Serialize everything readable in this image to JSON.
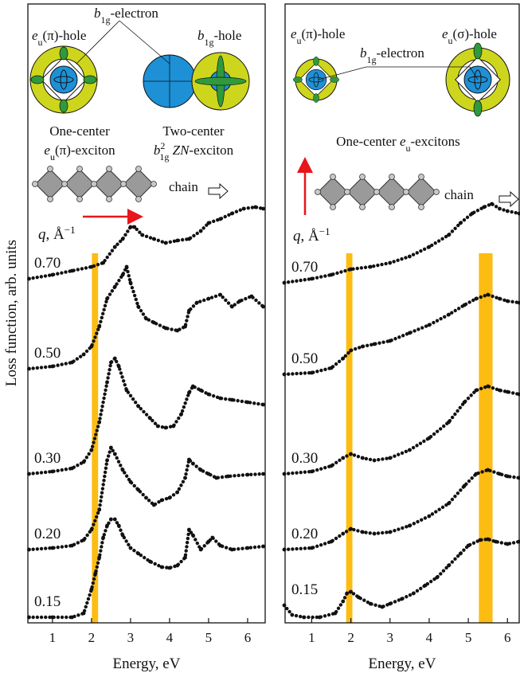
{
  "chart_data": [
    {
      "type": "scatter",
      "xlabel": "Energy, eV",
      "ylabel": "Loss function, arb. units",
      "xlim": [
        0.37,
        6.45
      ],
      "ylim": [
        0,
        7.77
      ],
      "xticks": [
        1,
        2,
        3,
        4,
        5,
        6
      ],
      "band_color": "#fdbc12",
      "bands": [
        [
          2.01,
          2.17
        ]
      ],
      "q_label": {
        "symbol": "q",
        "unit": ", Å",
        "sup": "−1"
      },
      "annotations": [
        {
          "parts": [
            {
              "text": "e",
              "style": "italic"
            },
            {
              "text": "u",
              "style": "sub"
            },
            {
              "text": "(π)-hole"
            }
          ]
        },
        {
          "parts": [
            {
              "text": "b",
              "style": "italic"
            },
            {
              "text": "1g",
              "style": "sub"
            },
            {
              "text": "-electron"
            }
          ]
        },
        {
          "parts": [
            {
              "text": "b",
              "style": "italic"
            },
            {
              "text": "1g",
              "style": "sub"
            },
            {
              "text": "-hole"
            }
          ]
        },
        {
          "parts": [
            {
              "text": "One-center"
            }
          ]
        },
        {
          "parts": [
            {
              "text": "e",
              "style": "italic"
            },
            {
              "text": "u",
              "style": "sub"
            },
            {
              "text": "(π)-exciton"
            }
          ]
        },
        {
          "parts": [
            {
              "text": "Two-center"
            }
          ]
        },
        {
          "parts": [
            {
              "text": "b",
              "style": "italic"
            },
            {
              "text": "2",
              "style": "sup"
            },
            {
              "text": "1g",
              "style": "sub-under"
            },
            {
              "text": " ZN",
              "style": "italic"
            },
            {
              "text": "-exciton"
            }
          ]
        },
        {
          "parts": [
            {
              "text": "chain"
            }
          ]
        }
      ],
      "series": [
        {
          "name": "0.70",
          "color": "#111111",
          "x": [
            0.4,
            1.0,
            1.5,
            2.0,
            2.3,
            2.6,
            2.8,
            3.0,
            3.1,
            3.3,
            3.6,
            3.9,
            4.2,
            4.5,
            4.8,
            5.0,
            5.3,
            5.6,
            5.9,
            6.2,
            6.4
          ],
          "values": [
            4.32,
            4.37,
            4.42,
            4.47,
            4.52,
            4.72,
            4.82,
            4.97,
            4.97,
            4.87,
            4.82,
            4.77,
            4.8,
            4.82,
            4.92,
            5.02,
            5.07,
            5.14,
            5.2,
            5.22,
            5.2
          ]
        },
        {
          "name": "0.50",
          "color": "#111111",
          "x": [
            0.4,
            1.0,
            1.5,
            1.8,
            2.0,
            2.2,
            2.4,
            2.6,
            2.8,
            2.9,
            3.0,
            3.2,
            3.4,
            3.6,
            3.9,
            4.2,
            4.4,
            4.5,
            4.7,
            5.0,
            5.3,
            5.6,
            5.8,
            6.1,
            6.4
          ],
          "values": [
            3.19,
            3.22,
            3.27,
            3.37,
            3.47,
            3.72,
            4.07,
            4.22,
            4.37,
            4.47,
            4.27,
            3.97,
            3.82,
            3.77,
            3.7,
            3.67,
            3.72,
            3.92,
            4.02,
            4.07,
            4.12,
            3.97,
            4.04,
            4.1,
            3.97
          ]
        },
        {
          "name": "0.30",
          "color": "#111111",
          "x": [
            0.4,
            1.0,
            1.5,
            1.8,
            2.0,
            2.2,
            2.4,
            2.5,
            2.6,
            2.7,
            2.9,
            3.2,
            3.5,
            3.7,
            3.9,
            4.1,
            4.3,
            4.5,
            4.6,
            4.8,
            5.0,
            5.3,
            5.6,
            6.0,
            6.4
          ],
          "values": [
            1.87,
            1.9,
            1.94,
            2.02,
            2.17,
            2.52,
            3.02,
            3.27,
            3.32,
            3.22,
            2.92,
            2.72,
            2.57,
            2.47,
            2.45,
            2.47,
            2.62,
            2.89,
            2.97,
            2.92,
            2.87,
            2.82,
            2.8,
            2.77,
            2.74
          ]
        },
        {
          "name": "0.20",
          "color": "#111111",
          "x": [
            0.4,
            1.0,
            1.5,
            1.8,
            2.0,
            2.2,
            2.4,
            2.5,
            2.6,
            2.8,
            3.0,
            3.2,
            3.4,
            3.6,
            3.8,
            4.0,
            4.2,
            4.4,
            4.5,
            4.6,
            4.8,
            5.0,
            5.2,
            5.5,
            6.0,
            6.4
          ],
          "values": [
            0.92,
            0.94,
            0.97,
            1.04,
            1.17,
            1.42,
            2.04,
            2.2,
            2.12,
            1.92,
            1.77,
            1.67,
            1.57,
            1.48,
            1.54,
            1.57,
            1.64,
            1.82,
            2.05,
            2.0,
            1.92,
            1.87,
            1.82,
            1.84,
            1.86,
            1.87
          ]
        },
        {
          "name": "0.15",
          "color": "#111111",
          "x": [
            0.4,
            1.0,
            1.5,
            1.8,
            2.0,
            2.1,
            2.2,
            2.3,
            2.4,
            2.5,
            2.6,
            2.7,
            2.8,
            3.0,
            3.2,
            3.5,
            3.8,
            4.0,
            4.2,
            4.4,
            4.5,
            4.6,
            4.8,
            5.0,
            5.1,
            5.3,
            5.6,
            6.0,
            6.4
          ],
          "values": [
            0.07,
            0.07,
            0.07,
            0.12,
            0.42,
            0.62,
            0.82,
            1.07,
            1.22,
            1.3,
            1.3,
            1.22,
            1.1,
            0.94,
            0.87,
            0.77,
            0.7,
            0.69,
            0.72,
            0.82,
            1.17,
            1.1,
            0.92,
            1.02,
            1.07,
            0.97,
            0.92,
            0.94,
            0.96
          ]
        }
      ]
    },
    {
      "type": "scatter",
      "xlabel": "Energy, eV",
      "xlim": [
        0.32,
        6.3
      ],
      "ylim": [
        0,
        7.77
      ],
      "xticks": [
        1,
        2,
        3,
        4,
        5,
        6
      ],
      "band_color": "#fdbc12",
      "bands": [
        [
          1.88,
          2.04
        ],
        [
          5.27,
          5.62
        ]
      ],
      "q_label": {
        "symbol": "q",
        "unit": ", Å",
        "sup": "−1"
      },
      "annotations": [
        {
          "parts": [
            {
              "text": "e",
              "style": "italic"
            },
            {
              "text": "u",
              "style": "sub"
            },
            {
              "text": "(π)-hole"
            }
          ]
        },
        {
          "parts": [
            {
              "text": "b",
              "style": "italic"
            },
            {
              "text": "1g",
              "style": "sub"
            },
            {
              "text": "-electron"
            }
          ]
        },
        {
          "parts": [
            {
              "text": "e",
              "style": "italic"
            },
            {
              "text": "u",
              "style": "sub"
            },
            {
              "text": "(σ)-hole"
            }
          ]
        },
        {
          "parts": [
            {
              "text": "One-center "
            },
            {
              "text": "e",
              "style": "italic"
            },
            {
              "text": "u",
              "style": "sub"
            },
            {
              "text": "-excitons"
            }
          ]
        },
        {
          "parts": [
            {
              "text": "chain"
            }
          ]
        }
      ],
      "series": [
        {
          "name": "0.70",
          "color": "#111111",
          "x": [
            0.3,
            1.0,
            1.5,
            2.0,
            2.5,
            3.0,
            3.5,
            4.0,
            4.5,
            4.8,
            5.1,
            5.4,
            5.6,
            5.8,
            6.0,
            6.3
          ],
          "values": [
            4.27,
            4.32,
            4.37,
            4.44,
            4.47,
            4.52,
            4.6,
            4.72,
            4.87,
            5.02,
            5.14,
            5.22,
            5.26,
            5.2,
            5.17,
            5.14
          ]
        },
        {
          "name": "0.50",
          "color": "#111111",
          "x": [
            0.3,
            1.0,
            1.5,
            1.8,
            2.0,
            2.3,
            2.6,
            3.0,
            3.5,
            4.0,
            4.5,
            4.9,
            5.2,
            5.5,
            5.8,
            6.0,
            6.3
          ],
          "values": [
            3.12,
            3.14,
            3.2,
            3.32,
            3.42,
            3.47,
            3.5,
            3.54,
            3.64,
            3.74,
            3.87,
            3.99,
            4.07,
            4.12,
            4.07,
            4.04,
            4.02
          ]
        },
        {
          "name": "0.30",
          "color": "#111111",
          "x": [
            0.3,
            1.0,
            1.5,
            1.8,
            2.0,
            2.3,
            2.6,
            3.0,
            3.5,
            4.0,
            4.5,
            4.9,
            5.2,
            5.5,
            5.8,
            6.0,
            6.3
          ],
          "values": [
            1.87,
            1.9,
            1.97,
            2.07,
            2.12,
            2.07,
            2.04,
            2.07,
            2.17,
            2.32,
            2.52,
            2.77,
            2.92,
            2.97,
            2.92,
            2.9,
            2.87
          ]
        },
        {
          "name": "0.20",
          "color": "#111111",
          "x": [
            0.3,
            1.0,
            1.5,
            1.8,
            2.0,
            2.3,
            2.6,
            3.0,
            3.5,
            4.0,
            4.5,
            4.9,
            5.2,
            5.5,
            5.8,
            6.0,
            6.3
          ],
          "values": [
            0.92,
            0.94,
            1.02,
            1.12,
            1.18,
            1.14,
            1.12,
            1.14,
            1.22,
            1.34,
            1.5,
            1.72,
            1.87,
            1.92,
            1.87,
            1.84,
            1.82
          ]
        },
        {
          "name": "0.15",
          "color": "#111111",
          "x": [
            0.3,
            0.5,
            0.8,
            1.2,
            1.6,
            1.8,
            1.9,
            2.0,
            2.2,
            2.5,
            2.8,
            3.0,
            3.3,
            3.6,
            3.9,
            4.2,
            4.5,
            4.8,
            5.0,
            5.3,
            5.5,
            5.7,
            6.0,
            6.3
          ],
          "values": [
            0.22,
            0.1,
            0.07,
            0.07,
            0.12,
            0.27,
            0.37,
            0.39,
            0.32,
            0.24,
            0.2,
            0.24,
            0.3,
            0.37,
            0.47,
            0.57,
            0.72,
            0.87,
            0.97,
            1.04,
            1.05,
            1.02,
            0.99,
            1.02
          ]
        }
      ]
    }
  ]
}
